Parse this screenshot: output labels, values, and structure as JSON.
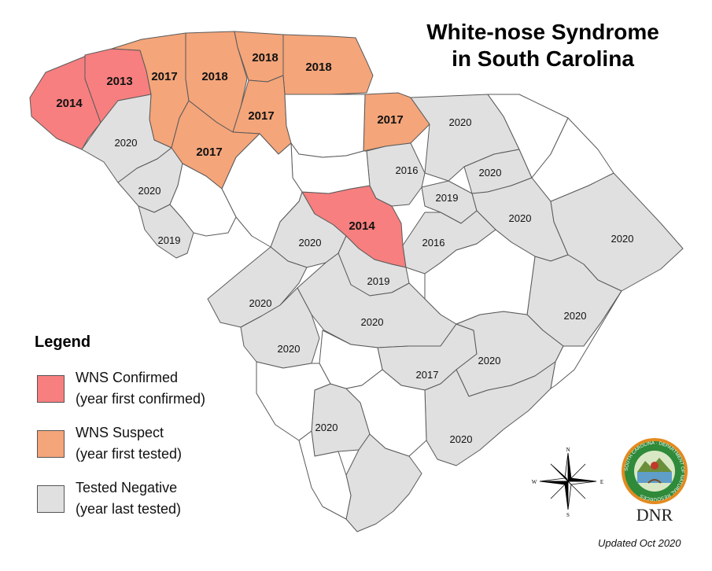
{
  "title": {
    "line1": "White-nose Syndrome",
    "line2": "in South Carolina"
  },
  "legend": {
    "title": "Legend",
    "items": [
      {
        "line1": "WNS Confirmed",
        "line2": "(year first confirmed)",
        "color": "#f77f7f"
      },
      {
        "line1": "WNS Suspect",
        "line2": "(year first tested)",
        "color": "#f4a57a"
      },
      {
        "line1": "Tested Negative",
        "line2": "(year last tested)",
        "color": "#e0e0e0"
      }
    ]
  },
  "map": {
    "untested_color": "#ffffff",
    "county_labels": [
      "2014",
      "2013",
      "2017",
      "2018",
      "2018",
      "2018",
      "2017",
      "2017",
      "2017",
      "2014",
      "2020",
      "2020",
      "2020",
      "2019",
      "2016",
      "2019",
      "2020",
      "2020",
      "2020",
      "2016",
      "2019",
      "2020",
      "2020",
      "2020",
      "2020",
      "2020",
      "2020",
      "2017",
      "2020",
      "2020"
    ]
  },
  "compass": {
    "n": "N",
    "s": "S",
    "e": "E",
    "w": "W"
  },
  "logo": {
    "ring_text": "SOUTH CAROLINA · DEPARTMENT OF NATURAL RESOURCES",
    "label": "DNR"
  },
  "updated": "Updated Oct 2020"
}
